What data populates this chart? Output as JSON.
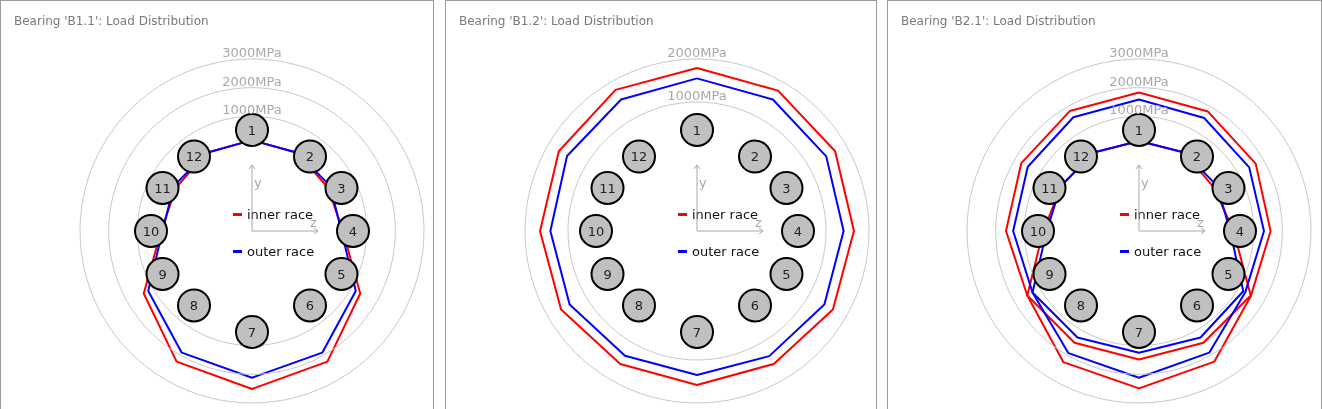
{
  "chart_data": [
    {
      "type": "radar",
      "title": "Bearing 'B1.1': Load Distribution",
      "categories": [
        "1",
        "2",
        "3",
        "4",
        "5",
        "6",
        "7",
        "8",
        "9",
        "10",
        "11",
        "12"
      ],
      "ylim": [
        -3000,
        3000
      ],
      "yticks": [
        {
          "value": 1000,
          "label": "1000MPa"
        },
        {
          "value": 2000,
          "label": "2000MPa"
        },
        {
          "value": 3000,
          "label": "3000MPa"
        }
      ],
      "grid": true,
      "legend": "center",
      "annotations": [
        "y",
        "z"
      ],
      "series": [
        {
          "name": "inner race",
          "color": "#ff0000",
          "values": [
            170,
            150,
            50,
            170,
            1360,
            2260,
            2510,
            2260,
            1360,
            170,
            50,
            150
          ]
        },
        {
          "name": "outer race",
          "color": "#0000ff",
          "values": [
            170,
            150,
            150,
            120,
            1180,
            1900,
            2120,
            1900,
            1180,
            120,
            150,
            150
          ]
        }
      ]
    },
    {
      "type": "radar",
      "title": "Bearing 'B1.2': Load Distribution",
      "categories": [
        "1",
        "2",
        "3",
        "4",
        "5",
        "6",
        "7",
        "8",
        "9",
        "10",
        "11",
        "12"
      ],
      "ylim": [
        -2000,
        2000
      ],
      "yticks": [
        {
          "value": 1000,
          "label": "1000MPa"
        },
        {
          "value": 2000,
          "label": "2000MPa"
        }
      ],
      "grid": true,
      "legend": "center",
      "annotations": [
        "y",
        "z"
      ],
      "series": [
        {
          "name": "inner race",
          "color": "#ff0000",
          "values": [
            1790,
            1770,
            1710,
            1650,
            1650,
            1570,
            1580,
            1570,
            1650,
            1650,
            1710,
            1790
          ]
        },
        {
          "name": "outer race",
          "color": "#0000ff",
          "values": [
            1550,
            1530,
            1470,
            1410,
            1420,
            1360,
            1350,
            1350,
            1420,
            1410,
            1490,
            1530
          ]
        }
      ]
    },
    {
      "type": "radar",
      "title": "Bearing 'B2.1': Load Distribution",
      "categories": [
        "1",
        "2",
        "3",
        "4",
        "5",
        "6",
        "7",
        "8",
        "9",
        "10",
        "11",
        "12"
      ],
      "ylim": [
        -3000,
        3000
      ],
      "yticks": [
        {
          "value": 1000,
          "label": "1000MPa"
        },
        {
          "value": 2000,
          "label": "2000MPa"
        },
        {
          "value": 3000,
          "label": "3000MPa"
        }
      ],
      "grid": true,
      "legend": "center",
      "annotations": [
        "y",
        "z"
      ],
      "series": [
        {
          "name": "inner race",
          "color": "#ff0000",
          "values": [
            1830,
            1810,
            1700,
            1590,
            1510,
            2260,
            2490,
            2280,
            1500,
            1640,
            1740,
            1830
          ]
        },
        {
          "color": "#ff0000",
          "values": [
            140,
            160,
            20,
            300,
            1500,
            1500,
            1480,
            1500,
            1500,
            340,
            130,
            160
          ]
        },
        {
          "name": "outer race",
          "color": "#0000ff",
          "values": [
            1590,
            1550,
            1440,
            1360,
            1280,
            1900,
            2120,
            1920,
            1290,
            1390,
            1480,
            1580
          ]
        },
        {
          "color": "#0000ff",
          "values": [
            140,
            160,
            150,
            180,
            1200,
            1290,
            1250,
            1290,
            1290,
            220,
            150,
            160
          ]
        }
      ]
    }
  ]
}
